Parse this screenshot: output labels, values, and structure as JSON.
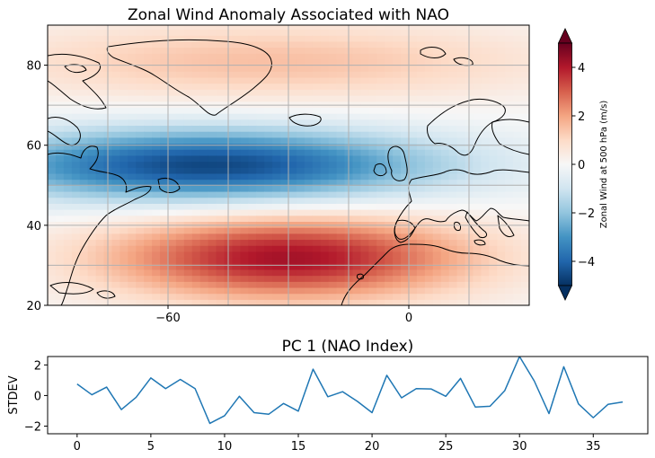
{
  "chart_data": [
    {
      "type": "heatmap",
      "title": "Zonal Wind Anomaly Associated with NAO",
      "map_extent": {
        "lon": [
          -90,
          30
        ],
        "lat": [
          20,
          90
        ]
      },
      "xticks": [
        {
          "value": -60,
          "label": "−60"
        },
        {
          "value": 0,
          "label": "0"
        }
      ],
      "yticks": [
        {
          "value": 20,
          "label": "20"
        },
        {
          "value": 40,
          "label": "40"
        },
        {
          "value": 60,
          "label": "60"
        },
        {
          "value": 80,
          "label": "80"
        }
      ],
      "gridlines_lon": [
        -75,
        -60,
        -45,
        -30,
        -15,
        0,
        15,
        30
      ],
      "gridlines_lat": [
        20,
        30,
        40,
        50,
        60,
        70,
        80
      ],
      "grid": true,
      "colorbar": {
        "label": "Zonal Wind at 500 hPa (m/s)",
        "range": [
          -5,
          5
        ],
        "colormap": "RdBu_r",
        "extend": "both",
        "ticks": [
          {
            "value": 4,
            "label": "4"
          },
          {
            "value": 2,
            "label": "2"
          },
          {
            "value": 0,
            "label": "0"
          },
          {
            "value": -2,
            "label": "−2"
          },
          {
            "value": -4,
            "label": "−4"
          }
        ]
      },
      "features": [
        {
          "type": "positive",
          "center": {
            "lon": -30,
            "lat": 32
          },
          "peak": 4.2
        },
        {
          "type": "negative",
          "center": {
            "lon": -50,
            "lat": 55
          },
          "peak": -4.6
        },
        {
          "type": "positive",
          "center": {
            "lon": -35,
            "lat": 81
          },
          "peak": 1.5
        }
      ]
    },
    {
      "type": "line",
      "title": "PC 1 (NAO Index)",
      "ylabel": "STDEV",
      "xlim": [
        -2,
        38.7
      ],
      "ylim": [
        -2.5,
        2.55
      ],
      "xticks": [
        {
          "value": 0,
          "label": "0"
        },
        {
          "value": 5,
          "label": "5"
        },
        {
          "value": 10,
          "label": "10"
        },
        {
          "value": 15,
          "label": "15"
        },
        {
          "value": 20,
          "label": "20"
        },
        {
          "value": 25,
          "label": "25"
        },
        {
          "value": 30,
          "label": "30"
        },
        {
          "value": 35,
          "label": "35"
        }
      ],
      "yticks": [
        {
          "value": 2,
          "label": "2"
        },
        {
          "value": 0,
          "label": "0"
        },
        {
          "value": -2,
          "label": "−2"
        }
      ],
      "color": "#1f77b4",
      "x": [
        0,
        1,
        2,
        3,
        4,
        5,
        6,
        7,
        8,
        9,
        10,
        11,
        12,
        13,
        14,
        15,
        16,
        17,
        18,
        19,
        20,
        21,
        22,
        23,
        24,
        25,
        26,
        27,
        28,
        29,
        30,
        31,
        32,
        33,
        34,
        35,
        36,
        37
      ],
      "y": [
        0.75,
        0.05,
        0.55,
        -0.92,
        -0.12,
        1.15,
        0.45,
        1.05,
        0.45,
        -1.82,
        -1.32,
        -0.05,
        -1.12,
        -1.22,
        -0.52,
        -1.02,
        1.72,
        -0.08,
        0.25,
        -0.38,
        -1.12,
        1.32,
        -0.15,
        0.45,
        0.43,
        -0.05,
        1.12,
        -0.75,
        -0.7,
        0.32,
        2.55,
        0.95,
        -1.18,
        1.88,
        -0.55,
        -1.45,
        -0.58,
        -0.42
      ]
    }
  ]
}
